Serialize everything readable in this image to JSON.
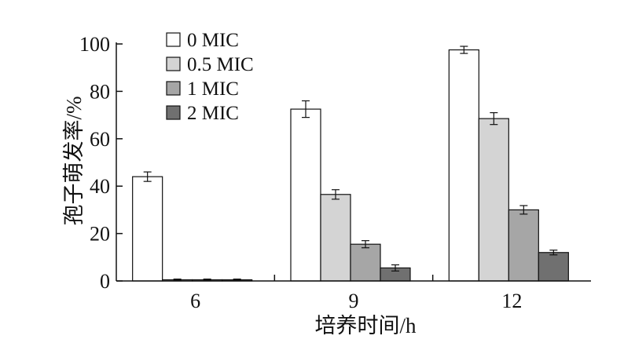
{
  "chart_data": {
    "type": "bar",
    "xlabel": "培养时间/h",
    "ylabel": "孢子萌发率/%",
    "categories": [
      "6",
      "9",
      "12"
    ],
    "ylim": [
      0,
      100
    ],
    "yticks": [
      0,
      20,
      40,
      60,
      80,
      100
    ],
    "legend_position": "top-left",
    "grid": false,
    "series": [
      {
        "name": "0 MIC",
        "color": "#ffffff",
        "values": [
          44,
          72.5,
          97.5
        ],
        "errors": [
          2,
          3.5,
          1.5
        ]
      },
      {
        "name": "0.5 MIC",
        "color": "#d4d4d4",
        "values": [
          0.5,
          36.5,
          68.5
        ],
        "errors": [
          0.3,
          2,
          2.5
        ]
      },
      {
        "name": "1 MIC",
        "color": "#a6a6a6",
        "values": [
          0.5,
          15.5,
          30
        ],
        "errors": [
          0.3,
          1.5,
          1.8
        ]
      },
      {
        "name": "2 MIC",
        "color": "#707070",
        "values": [
          0.5,
          5.5,
          12
        ],
        "errors": [
          0.3,
          1.3,
          1
        ]
      }
    ]
  }
}
